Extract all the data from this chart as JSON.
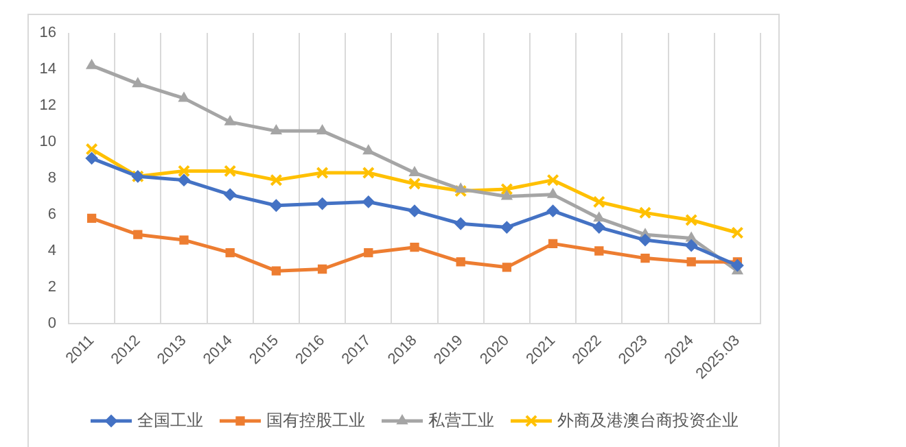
{
  "chart_data": {
    "type": "line",
    "categories": [
      "2011",
      "2012",
      "2013",
      "2014",
      "2015",
      "2016",
      "2017",
      "2018",
      "2019",
      "2020",
      "2021",
      "2022",
      "2023",
      "2024",
      "2025.03"
    ],
    "series": [
      {
        "name": "全国工业",
        "color": "#4472c4",
        "marker": "diamond",
        "values": [
          9.1,
          8.1,
          7.9,
          7.1,
          6.5,
          6.6,
          6.7,
          6.2,
          5.5,
          5.3,
          6.2,
          5.3,
          4.6,
          4.3,
          3.2
        ]
      },
      {
        "name": "国有控股工业",
        "color": "#ed7d31",
        "marker": "square",
        "values": [
          5.8,
          4.9,
          4.6,
          3.9,
          2.9,
          3.0,
          3.9,
          4.2,
          3.4,
          3.1,
          4.4,
          4.0,
          3.6,
          3.4,
          3.4
        ]
      },
      {
        "name": "私营工业",
        "color": "#a5a5a5",
        "marker": "triangle",
        "values": [
          14.2,
          13.2,
          12.4,
          11.1,
          10.6,
          10.6,
          9.5,
          8.3,
          7.4,
          7.0,
          7.1,
          5.8,
          4.9,
          4.7,
          2.9
        ]
      },
      {
        "name": "外商及港澳台商投资企业",
        "color": "#ffc000",
        "marker": "cross",
        "values": [
          9.6,
          8.1,
          8.4,
          8.4,
          7.9,
          8.3,
          8.3,
          7.7,
          7.3,
          7.4,
          7.9,
          6.7,
          6.1,
          5.7,
          5.0
        ]
      }
    ],
    "ylim": [
      0,
      16
    ],
    "yticks": [
      0,
      2,
      4,
      6,
      8,
      10,
      12,
      14,
      16
    ],
    "grid": "x",
    "legend": "bottom",
    "line_style": "solid"
  }
}
